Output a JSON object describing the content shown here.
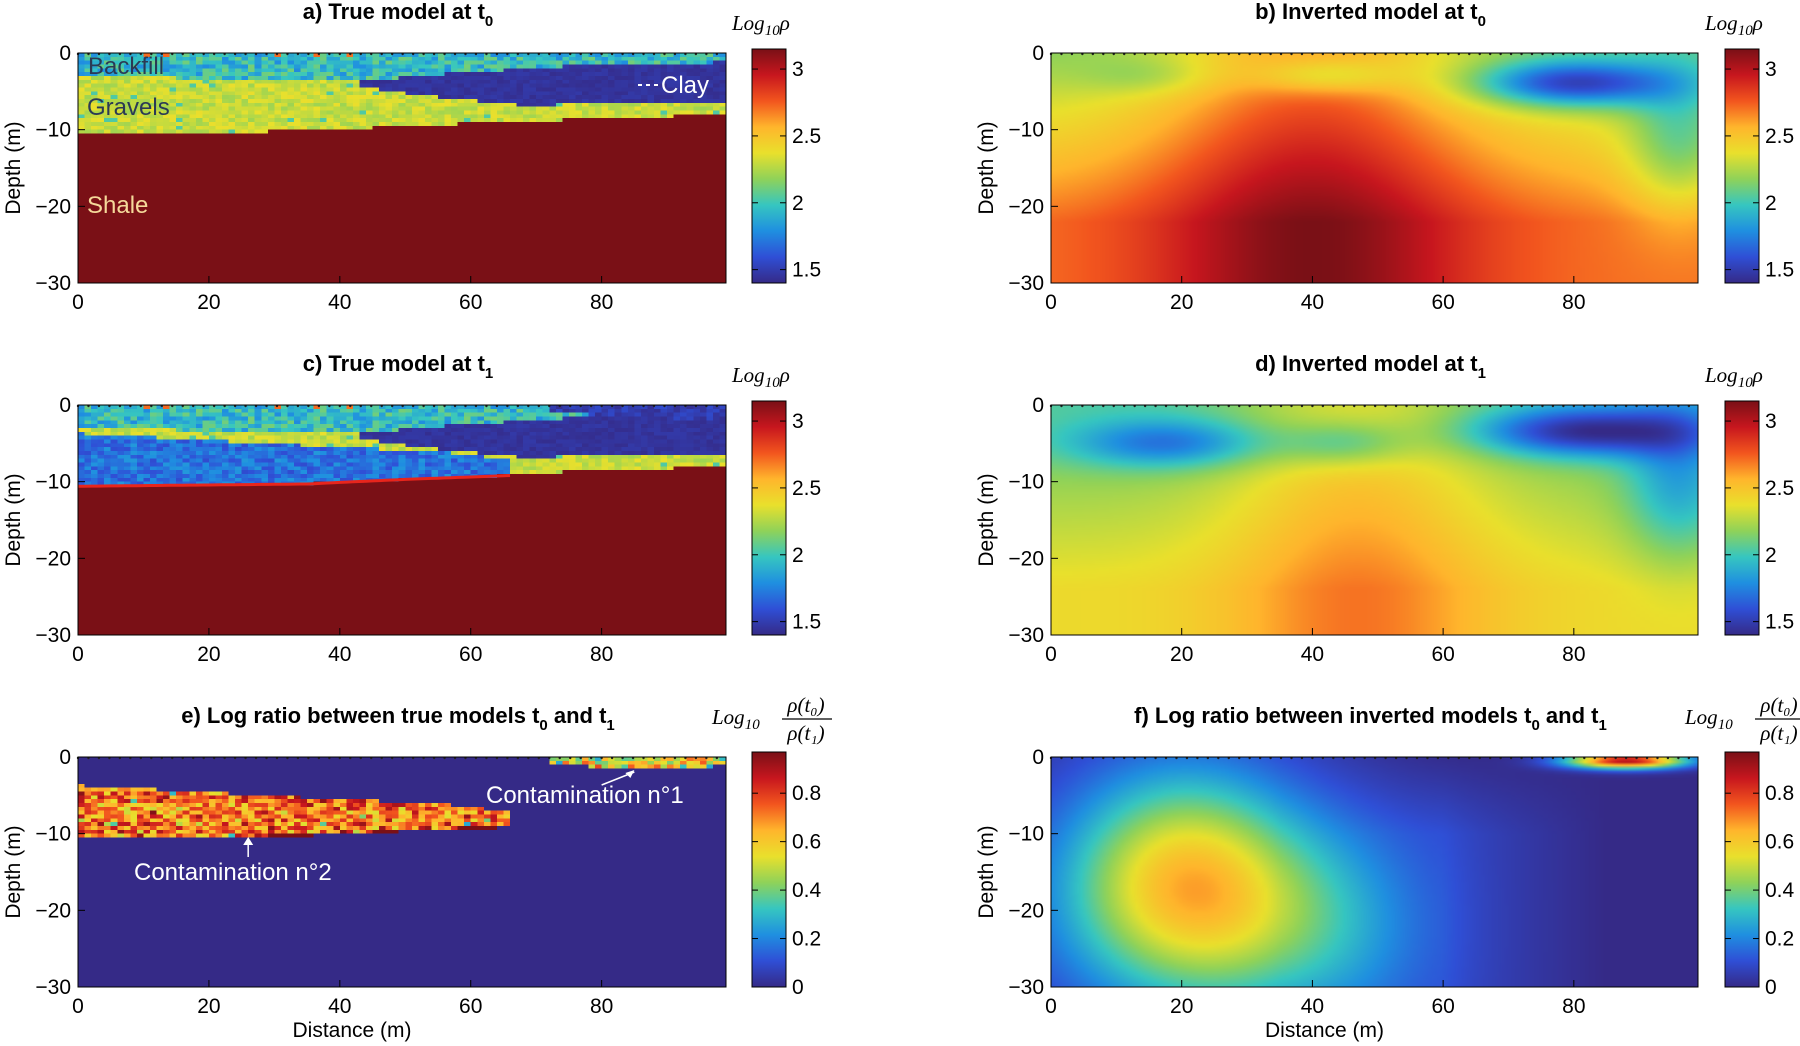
{
  "figure": {
    "colormap": [
      "#352a87",
      "#2f4fd6",
      "#1f8fe0",
      "#36c6c0",
      "#8fd259",
      "#e9e02c",
      "#ffb52c",
      "#f2551e",
      "#c7161e",
      "#7a1016"
    ]
  },
  "chart_data": [
    {
      "id": "a",
      "type": "heatmap",
      "title": "a) True model at t",
      "title_sub": "0",
      "xlabel": "",
      "ylabel": "Depth (m)",
      "xlim": [
        0,
        99
      ],
      "ylim": [
        -30,
        0
      ],
      "xticks": [
        "0",
        "20",
        "40",
        "60",
        "80"
      ],
      "yticks": [
        "0",
        "−10",
        "−20",
        "−30"
      ],
      "colorbar": {
        "label": "Log₁₀ρ",
        "label_main": "Log",
        "label_sub": "10",
        "label_tail": "ρ",
        "range": [
          1.4,
          3.15
        ],
        "ticks": [
          "3",
          "2.5",
          "2",
          "1.5"
        ],
        "tick_values": [
          3,
          2.5,
          2,
          1.5
        ]
      },
      "annotations": [
        "Backfill",
        "Gravels",
        "Clay",
        "Shale"
      ],
      "layers": {
        "backfill": 1.85,
        "gravels": 2.3,
        "clay": 1.45,
        "shale": 3.2
      },
      "field_model": "true_t0"
    },
    {
      "id": "b",
      "type": "heatmap",
      "title": "b) Inverted model at t",
      "title_sub": "0",
      "xlabel": "",
      "ylabel": "Depth (m)",
      "xlim": [
        0,
        99
      ],
      "ylim": [
        -30,
        0
      ],
      "xticks": [
        "0",
        "20",
        "40",
        "60",
        "80"
      ],
      "yticks": [
        "0",
        "−10",
        "−20",
        "−30"
      ],
      "colorbar": {
        "label": "Log₁₀ρ",
        "label_main": "Log",
        "label_sub": "10",
        "label_tail": "ρ",
        "range": [
          1.4,
          3.15
        ],
        "ticks": [
          "3",
          "2.5",
          "2",
          "1.5"
        ],
        "tick_values": [
          3,
          2.5,
          2,
          1.5
        ]
      },
      "field_model": "inv_t0"
    },
    {
      "id": "c",
      "type": "heatmap",
      "title": "c) True model at t",
      "title_sub": "1",
      "xlabel": "",
      "ylabel": "Depth (m)",
      "xlim": [
        0,
        99
      ],
      "ylim": [
        -30,
        0
      ],
      "xticks": [
        "0",
        "20",
        "40",
        "60",
        "80"
      ],
      "yticks": [
        "0",
        "−10",
        "−20",
        "−30"
      ],
      "colorbar": {
        "label": "Log₁₀ρ",
        "label_main": "Log",
        "label_sub": "10",
        "label_tail": "ρ",
        "range": [
          1.4,
          3.15
        ],
        "ticks": [
          "3",
          "2.5",
          "2",
          "1.5"
        ],
        "tick_values": [
          3,
          2.5,
          2,
          1.5
        ]
      },
      "field_model": "true_t1"
    },
    {
      "id": "d",
      "type": "heatmap",
      "title": "d) Inverted model at t",
      "title_sub": "1",
      "xlabel": "",
      "ylabel": "Depth (m)",
      "xlim": [
        0,
        99
      ],
      "ylim": [
        -30,
        0
      ],
      "xticks": [
        "0",
        "20",
        "40",
        "60",
        "80"
      ],
      "yticks": [
        "0",
        "−10",
        "−20",
        "−30"
      ],
      "colorbar": {
        "label": "Log₁₀ρ",
        "label_main": "Log",
        "label_sub": "10",
        "label_tail": "ρ",
        "range": [
          1.4,
          3.15
        ],
        "ticks": [
          "3",
          "2.5",
          "2",
          "1.5"
        ],
        "tick_values": [
          3,
          2.5,
          2,
          1.5
        ]
      },
      "field_model": "inv_t1"
    },
    {
      "id": "e",
      "type": "heatmap",
      "title": "e) Log ratio between true models t",
      "title_sub": "0",
      "title_mid": " and t",
      "title_sub2": "1",
      "xlabel": "Distance (m)",
      "ylabel": "Depth (m)",
      "xlim": [
        0,
        99
      ],
      "ylim": [
        -30,
        0
      ],
      "xticks": [
        "0",
        "20",
        "40",
        "60",
        "80"
      ],
      "yticks": [
        "0",
        "−10",
        "−20",
        "−30"
      ],
      "colorbar": {
        "label": "Log₁₀ ρ(t₀)/ρ(t₁)",
        "label_main": "Log",
        "label_sub": "10",
        "num": "ρ(t₀)",
        "den": "ρ(t₁)",
        "range": [
          0,
          0.97
        ],
        "ticks": [
          "0.8",
          "0.6",
          "0.4",
          "0.2",
          "0"
        ],
        "tick_values": [
          0.8,
          0.6,
          0.4,
          0.2,
          0
        ]
      },
      "annotations": [
        "Contamination n°1",
        "Contamination n°2"
      ],
      "field_model": "ratio_true"
    },
    {
      "id": "f",
      "type": "heatmap",
      "title": "f) Log ratio between inverted models t",
      "title_sub": "0",
      "title_mid": " and t",
      "title_sub2": "1",
      "xlabel": "Distance (m)",
      "ylabel": "Depth (m)",
      "xlim": [
        0,
        99
      ],
      "ylim": [
        -30,
        0
      ],
      "xticks": [
        "0",
        "20",
        "40",
        "60",
        "80"
      ],
      "yticks": [
        "0",
        "−10",
        "−20",
        "−30"
      ],
      "colorbar": {
        "label": "Log₁₀ ρ(t₀)/ρ(t₁)",
        "label_main": "Log",
        "label_sub": "10",
        "num": "ρ(t₀)",
        "den": "ρ(t₁)",
        "range": [
          0,
          0.97
        ],
        "ticks": [
          "0.8",
          "0.6",
          "0.4",
          "0.2",
          "0"
        ],
        "tick_values": [
          0.8,
          0.6,
          0.4,
          0.2,
          0
        ]
      },
      "field_model": "ratio_inv"
    }
  ]
}
